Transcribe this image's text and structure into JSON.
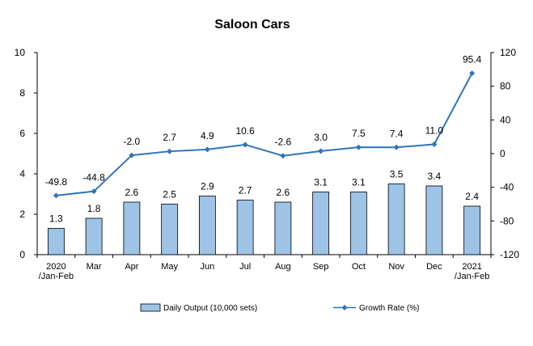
{
  "chart_data": {
    "type": "bar+line",
    "title": "Saloon Cars",
    "categories": [
      [
        "2020",
        "/Jan-Feb"
      ],
      [
        "Mar"
      ],
      [
        "Apr"
      ],
      [
        "May"
      ],
      [
        "Jun"
      ],
      [
        "Jul"
      ],
      [
        "Aug"
      ],
      [
        "Sep"
      ],
      [
        "Oct"
      ],
      [
        "Nov"
      ],
      [
        "Dec"
      ],
      [
        "2021",
        "/Jan-Feb"
      ]
    ],
    "series": [
      {
        "name": "Daily Output (10,000 sets)",
        "type": "bar",
        "axis": "left",
        "values": [
          1.3,
          1.8,
          2.6,
          2.5,
          2.9,
          2.7,
          2.6,
          3.1,
          3.1,
          3.5,
          3.4,
          2.4
        ],
        "labels": [
          "1.3",
          "1.8",
          "2.6",
          "2.5",
          "2.9",
          "2.7",
          "2.6",
          "3.1",
          "3.1",
          "3.5",
          "3.4",
          "2.4"
        ],
        "color": "#9dc3e6"
      },
      {
        "name": "Growth Rate (%)",
        "type": "line",
        "axis": "right",
        "values": [
          -49.8,
          -44.8,
          -2.0,
          2.7,
          4.9,
          10.6,
          -2.6,
          3.0,
          7.5,
          7.4,
          11.0,
          95.4
        ],
        "labels": [
          "-49.8",
          "-44.8",
          "-2.0",
          "2.7",
          "4.9",
          "10.6",
          "-2.6",
          "3.0",
          "7.5",
          "7.4",
          "11.0",
          "95.4"
        ],
        "color": "#2e75b6"
      }
    ],
    "y_left": {
      "min": 0,
      "max": 10,
      "ticks": [
        "0",
        "2",
        "4",
        "6",
        "8",
        "10"
      ]
    },
    "y_right": {
      "min": -120,
      "max": 120,
      "ticks": [
        "-120",
        "-80",
        "-40",
        "0",
        "40",
        "80",
        "120"
      ]
    },
    "grid": false,
    "legend_position": "bottom"
  }
}
